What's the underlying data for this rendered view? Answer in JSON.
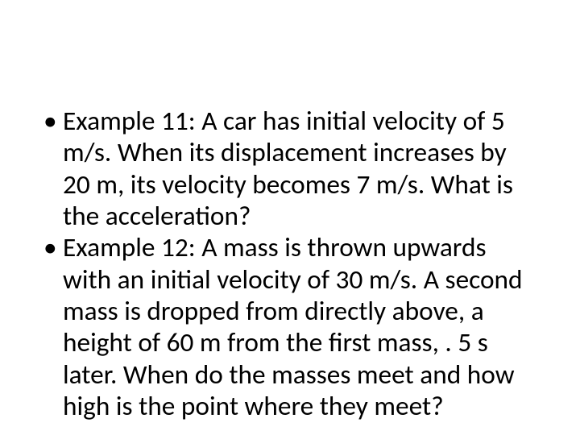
{
  "slide": {
    "bullets": [
      {
        "text": "Example 11: A car has initial velocity of 5 m/s. When its displacement increases by 20 m, its velocity becomes 7 m/s. What is the acceleration?"
      },
      {
        "text": "Example 12: A mass is thrown upwards with an initial velocity of 30 m/s. A second mass is dropped from directly above, a height of 60 m from the first mass, . 5 s later. When do the masses meet and how high is the point where they meet?"
      }
    ],
    "style": {
      "font_size_pt": 25,
      "line_height": 1.18,
      "color": "#000000",
      "bullet_color": "#000000",
      "background": "#ffffff"
    }
  }
}
